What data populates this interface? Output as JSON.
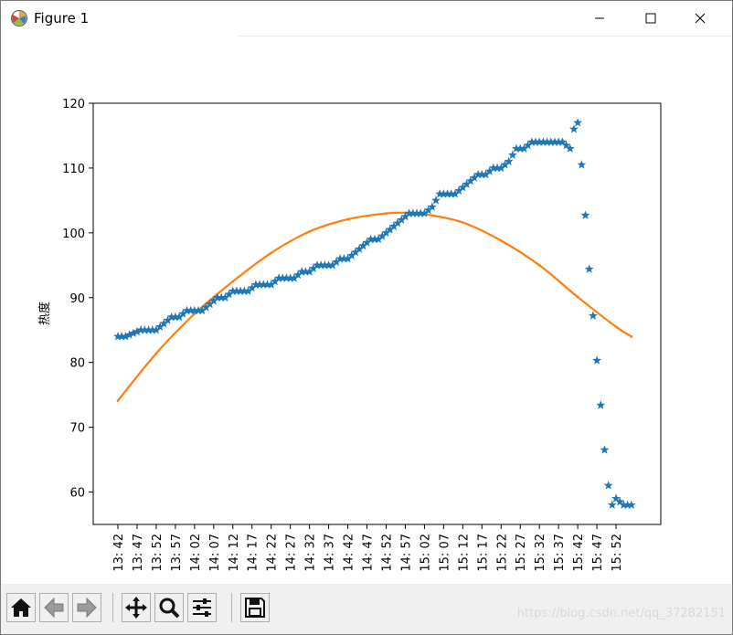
{
  "window": {
    "title": "Figure 1",
    "app_icon": "matplotlib-icon",
    "controls": [
      "minimize-icon",
      "maximize-icon",
      "close-icon"
    ]
  },
  "chart_data": {
    "type": "scatter",
    "title": "",
    "xlabel": "",
    "ylabel": "热度",
    "ylim": [
      55,
      120
    ],
    "yticks": [
      60,
      70,
      80,
      90,
      100,
      110,
      120
    ],
    "x_range": [
      "13:42",
      "15:57"
    ],
    "xtick_labels": [
      "13:42",
      "13:47",
      "13:52",
      "13:57",
      "14:02",
      "14:07",
      "14:12",
      "14:17",
      "14:22",
      "14:27",
      "14:32",
      "14:37",
      "14:42",
      "14:47",
      "14:52",
      "14:57",
      "15:02",
      "15:07",
      "15:12",
      "15:17",
      "15:22",
      "15:27",
      "15:32",
      "15:37",
      "15:42",
      "15:47",
      "15:52"
    ],
    "grid": false,
    "series": [
      {
        "marker": "star",
        "color": "#1f77b4",
        "x": [
          "13:42",
          "13:44",
          "13:46",
          "13:48",
          "13:50",
          "13:52",
          "13:54",
          "13:56",
          "13:58",
          "14:00",
          "14:02",
          "14:04",
          "14:06",
          "14:08",
          "14:10",
          "14:12",
          "14:14",
          "14:16",
          "14:18",
          "14:20",
          "14:22",
          "14:24",
          "14:26",
          "14:28",
          "14:30",
          "14:32",
          "14:34",
          "14:36",
          "14:38",
          "14:40",
          "14:42",
          "14:44",
          "14:46",
          "14:48",
          "14:50",
          "14:52",
          "14:54",
          "14:56",
          "14:58",
          "15:00",
          "15:02",
          "15:04",
          "15:06",
          "15:08",
          "15:10",
          "15:12",
          "15:14",
          "15:16",
          "15:18",
          "15:20",
          "15:22",
          "15:24",
          "15:26",
          "15:28",
          "15:30",
          "15:32",
          "15:34",
          "15:36",
          "15:38",
          "15:40",
          "15:41",
          "15:42",
          "15:43",
          "15:44",
          "15:45",
          "15:46",
          "15:47",
          "15:48",
          "15:49",
          "15:50",
          "15:51",
          "15:52",
          "15:53",
          "15:54",
          "15:55",
          "15:56"
        ],
        "y": [
          84,
          84,
          84.5,
          85,
          85,
          85,
          86,
          87,
          87,
          88,
          88,
          88,
          89,
          90,
          90,
          91,
          91,
          91,
          92,
          92,
          92,
          93,
          93,
          93,
          94,
          94,
          95,
          95,
          95,
          96,
          96,
          97,
          98,
          99,
          99,
          100,
          101,
          102,
          103,
          103,
          103,
          104,
          106,
          106,
          106,
          107,
          108,
          109,
          109,
          110,
          110,
          111,
          113,
          113,
          114,
          114,
          114,
          114,
          114,
          113,
          116,
          117,
          110.5,
          102.7,
          94.4,
          87.2,
          80.3,
          73.4,
          66.5,
          61,
          58,
          59,
          58.5,
          58,
          58,
          58
        ]
      },
      {
        "marker": "line",
        "color": "#ff7f0e",
        "x": [
          "13:42",
          "13:52",
          "14:02",
          "14:12",
          "14:22",
          "14:32",
          "14:42",
          "14:52",
          "14:57",
          "15:02",
          "15:12",
          "15:22",
          "15:32",
          "15:42",
          "15:52",
          "15:56"
        ],
        "y": [
          74.1,
          81.4,
          87.5,
          92.5,
          96.9,
          100.2,
          102.1,
          103.0,
          103.1,
          102.9,
          101.6,
          98.8,
          95.0,
          90.1,
          85.5,
          84.0
        ]
      }
    ]
  },
  "toolbar": {
    "buttons": [
      "home-icon",
      "back-icon",
      "forward-icon",
      "pan-icon",
      "zoom-icon",
      "configure-subplots-icon",
      "save-icon"
    ]
  },
  "watermark": "https://blog.csdn.net/qq_37282151"
}
